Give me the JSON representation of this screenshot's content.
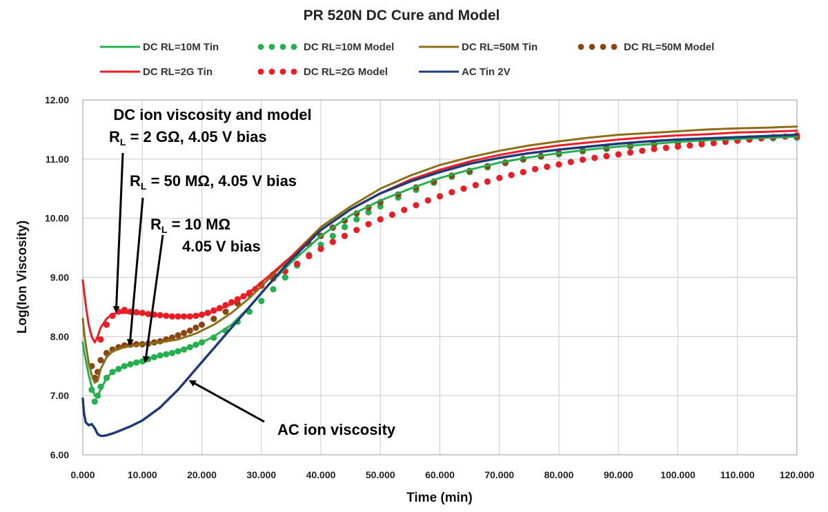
{
  "colors": {
    "green": "#22b14c",
    "red": "#ed1c24",
    "brown": "#8b6d14",
    "brown_model": "#8b4513",
    "navy": "#1f3a78",
    "grid": "#c8c8c8"
  },
  "chart_data": {
    "type": "line",
    "title": "PR 520N DC Cure and Model",
    "xlabel": "Time (min)",
    "ylabel": "Log(Ion Viscosity)",
    "xlim": [
      0,
      120
    ],
    "ylim": [
      6,
      12
    ],
    "grid": true,
    "legend_position": "top",
    "x_ticks": [
      0,
      10,
      20,
      30,
      40,
      50,
      60,
      70,
      80,
      90,
      100,
      110,
      120
    ],
    "x_tick_labels": [
      "0.000",
      "10.000",
      "20.000",
      "30.000",
      "40.000",
      "50.000",
      "60.000",
      "70.000",
      "80.000",
      "90.000",
      "100.000",
      "110.000",
      "120.000"
    ],
    "y_ticks": [
      6,
      7,
      8,
      9,
      10,
      11,
      12
    ],
    "y_tick_labels": [
      "6.00",
      "7.00",
      "8.00",
      "9.00",
      "10.00",
      "11.00",
      "12.00"
    ],
    "series": [
      {
        "name": "DC RL=10M Tin",
        "style": "line",
        "color": "#22b14c",
        "x": [
          0,
          0.3,
          0.6,
          1,
          1.5,
          2,
          2.5,
          3,
          4,
          5,
          7,
          10,
          13,
          16,
          19,
          22,
          25,
          28,
          31,
          35,
          40,
          45,
          50,
          55,
          60,
          65,
          70,
          75,
          80,
          85,
          90,
          95,
          100,
          105,
          110,
          115,
          120
        ],
        "y": [
          7.9,
          7.7,
          7.55,
          7.35,
          7.15,
          7.0,
          7.0,
          7.1,
          7.3,
          7.4,
          7.5,
          7.6,
          7.68,
          7.76,
          7.85,
          8.0,
          8.2,
          8.5,
          8.85,
          9.25,
          9.7,
          10.05,
          10.3,
          10.5,
          10.68,
          10.82,
          10.94,
          11.03,
          11.1,
          11.16,
          11.21,
          11.25,
          11.29,
          11.32,
          11.34,
          11.36,
          11.38
        ]
      },
      {
        "name": "DC RL=10M Model",
        "style": "dots",
        "color": "#22b14c",
        "x": [
          1.5,
          2,
          2.5,
          3,
          4,
          5,
          6,
          7,
          8,
          9,
          10,
          11,
          12,
          13,
          14,
          15,
          16,
          17,
          18,
          19,
          20,
          22,
          24,
          26,
          28,
          30,
          32,
          34,
          36,
          38,
          40,
          42,
          44,
          46,
          48,
          50,
          53,
          56,
          59,
          62,
          65,
          68,
          71,
          74,
          77,
          80,
          84,
          88,
          92,
          96,
          100,
          104,
          108,
          112,
          116,
          120
        ],
        "y": [
          7.1,
          6.9,
          7.0,
          7.15,
          7.3,
          7.4,
          7.45,
          7.5,
          7.53,
          7.56,
          7.58,
          7.62,
          7.65,
          7.68,
          7.7,
          7.72,
          7.75,
          7.78,
          7.82,
          7.86,
          7.9,
          7.98,
          8.1,
          8.25,
          8.42,
          8.6,
          8.8,
          9.0,
          9.2,
          9.38,
          9.55,
          9.7,
          9.85,
          9.98,
          10.1,
          10.2,
          10.35,
          10.48,
          10.6,
          10.7,
          10.78,
          10.86,
          10.93,
          10.99,
          11.04,
          11.08,
          11.13,
          11.17,
          11.21,
          11.24,
          11.27,
          11.29,
          11.31,
          11.33,
          11.35,
          11.36
        ]
      },
      {
        "name": "DC RL=50M Tin",
        "style": "line",
        "color": "#8b6d14",
        "x": [
          0,
          0.3,
          0.6,
          1,
          1.5,
          2,
          2.5,
          3,
          4,
          5,
          7,
          10,
          13,
          16,
          19,
          22,
          25,
          28,
          31,
          35,
          40,
          45,
          50,
          55,
          60,
          65,
          70,
          75,
          80,
          85,
          90,
          95,
          100,
          105,
          110,
          115,
          120
        ],
        "y": [
          8.3,
          8.0,
          7.8,
          7.55,
          7.35,
          7.22,
          7.25,
          7.45,
          7.65,
          7.75,
          7.82,
          7.87,
          7.9,
          7.95,
          8.05,
          8.2,
          8.4,
          8.65,
          8.95,
          9.35,
          9.85,
          10.2,
          10.5,
          10.72,
          10.9,
          11.03,
          11.14,
          11.23,
          11.3,
          11.36,
          11.41,
          11.44,
          11.47,
          11.5,
          11.52,
          11.53,
          11.55
        ]
      },
      {
        "name": "DC RL=50M Model",
        "style": "dots",
        "color": "#8b4513",
        "x": [
          1.5,
          2,
          2.5,
          3,
          4,
          5,
          6,
          7,
          8,
          9,
          10,
          11,
          12,
          13,
          14,
          15,
          16,
          17,
          18,
          19,
          20,
          22,
          24,
          26,
          28,
          30,
          32,
          34,
          36,
          38,
          40,
          42,
          44,
          46,
          48,
          50,
          53,
          56,
          59,
          62,
          65,
          68,
          71,
          74,
          77,
          80,
          84,
          88,
          92,
          96,
          100,
          104,
          108,
          112,
          116,
          120
        ],
        "y": [
          7.5,
          7.3,
          7.4,
          7.6,
          7.72,
          7.78,
          7.82,
          7.85,
          7.86,
          7.87,
          7.87,
          7.88,
          7.9,
          7.92,
          7.95,
          7.98,
          8.02,
          8.06,
          8.1,
          8.15,
          8.2,
          8.3,
          8.42,
          8.56,
          8.72,
          8.88,
          9.05,
          9.22,
          9.4,
          9.56,
          9.7,
          9.84,
          9.96,
          10.08,
          10.18,
          10.27,
          10.4,
          10.52,
          10.62,
          10.72,
          10.8,
          10.88,
          10.94,
          11.0,
          11.05,
          11.1,
          11.15,
          11.19,
          11.23,
          11.26,
          11.29,
          11.31,
          11.33,
          11.35,
          11.37,
          11.38
        ]
      },
      {
        "name": "DC RL=2G Tin",
        "style": "line",
        "color": "#ed1c24",
        "x": [
          0,
          0.3,
          0.6,
          1,
          1.5,
          2,
          2.5,
          3,
          4,
          5,
          6,
          8,
          10,
          13,
          16,
          19,
          22,
          25,
          28,
          31,
          35,
          40,
          45,
          50,
          55,
          60,
          65,
          70,
          75,
          80,
          85,
          90,
          95,
          100,
          105,
          110,
          115,
          120
        ],
        "y": [
          8.95,
          8.7,
          8.45,
          8.2,
          8.0,
          7.9,
          8.0,
          8.15,
          8.3,
          8.38,
          8.4,
          8.4,
          8.38,
          8.36,
          8.35,
          8.35,
          8.42,
          8.55,
          8.75,
          9.0,
          9.35,
          9.8,
          10.15,
          10.42,
          10.65,
          10.82,
          10.96,
          11.07,
          11.16,
          11.23,
          11.28,
          11.33,
          11.37,
          11.4,
          11.42,
          11.45,
          11.46,
          11.48
        ]
      },
      {
        "name": "DC RL=2G Model",
        "style": "dots",
        "color": "#ed1c24",
        "x": [
          3,
          4,
          5,
          6,
          7,
          8,
          9,
          10,
          11,
          12,
          13,
          14,
          15,
          16,
          17,
          18,
          19,
          20,
          21,
          22,
          23,
          24,
          25,
          26,
          27,
          28,
          29,
          30,
          32,
          34,
          36,
          38,
          40,
          42,
          44,
          46,
          48,
          50,
          52,
          54,
          56,
          58,
          60,
          62,
          64,
          66,
          68,
          70,
          72,
          74,
          76,
          78,
          80,
          82,
          84,
          86,
          88,
          90,
          92,
          94,
          96,
          98,
          100,
          102,
          104,
          106,
          108,
          110,
          112,
          114,
          116,
          118,
          120
        ],
        "y": [
          7.95,
          8.2,
          8.35,
          8.42,
          8.45,
          8.42,
          8.41,
          8.4,
          8.38,
          8.37,
          8.36,
          8.35,
          8.34,
          8.34,
          8.34,
          8.34,
          8.35,
          8.37,
          8.4,
          8.44,
          8.48,
          8.53,
          8.58,
          8.63,
          8.68,
          8.74,
          8.8,
          8.86,
          8.98,
          9.1,
          9.23,
          9.36,
          9.48,
          9.6,
          9.7,
          9.8,
          9.9,
          9.98,
          10.06,
          10.14,
          10.22,
          10.3,
          10.37,
          10.44,
          10.5,
          10.56,
          10.62,
          10.68,
          10.73,
          10.78,
          10.83,
          10.87,
          10.91,
          10.95,
          10.99,
          11.02,
          11.05,
          11.08,
          11.11,
          11.14,
          11.17,
          11.19,
          11.21,
          11.23,
          11.25,
          11.27,
          11.29,
          11.31,
          11.33,
          11.35,
          11.37,
          11.38,
          11.4
        ]
      },
      {
        "name": "AC Tin 2V",
        "style": "line",
        "color": "#1f3a78",
        "x": [
          0,
          0.2,
          0.5,
          1,
          1.5,
          2,
          2.5,
          3,
          3.5,
          4,
          5,
          6,
          8,
          10,
          13,
          16,
          19,
          22,
          25,
          28,
          31,
          35,
          40,
          45,
          50,
          55,
          60,
          65,
          70,
          75,
          80,
          85,
          90,
          95,
          100,
          105,
          110,
          115,
          120
        ],
        "y": [
          6.95,
          6.7,
          6.55,
          6.5,
          6.52,
          6.45,
          6.35,
          6.32,
          6.32,
          6.33,
          6.36,
          6.4,
          6.48,
          6.58,
          6.8,
          7.1,
          7.45,
          7.8,
          8.15,
          8.5,
          8.85,
          9.3,
          9.8,
          10.15,
          10.42,
          10.62,
          10.78,
          10.92,
          11.02,
          11.1,
          11.16,
          11.21,
          11.26,
          11.3,
          11.33,
          11.35,
          11.37,
          11.39,
          11.41
        ]
      }
    ],
    "annotations": [
      {
        "id": "dc-title",
        "text": "DC ion viscosity and model"
      },
      {
        "id": "rl-2g",
        "text_main": "R",
        "text_sub": "L",
        "text_rest": " = 2 GΩ, 4.05 V bias",
        "target_x": 5.6,
        "target_y": 8.42
      },
      {
        "id": "rl-50m",
        "text_main": "R",
        "text_sub": "L",
        "text_rest": " = 50 MΩ, 4.05 V bias",
        "target_x": 7.9,
        "target_y": 7.86
      },
      {
        "id": "rl-10m",
        "text_main": "R",
        "text_sub": "L",
        "text_rest": " = 10 MΩ",
        "text_line2": "4.05 V bias",
        "target_x": 10.5,
        "target_y": 7.57
      },
      {
        "id": "ac",
        "text": "AC ion viscosity",
        "target_x": 18,
        "target_y": 7.25
      }
    ]
  }
}
